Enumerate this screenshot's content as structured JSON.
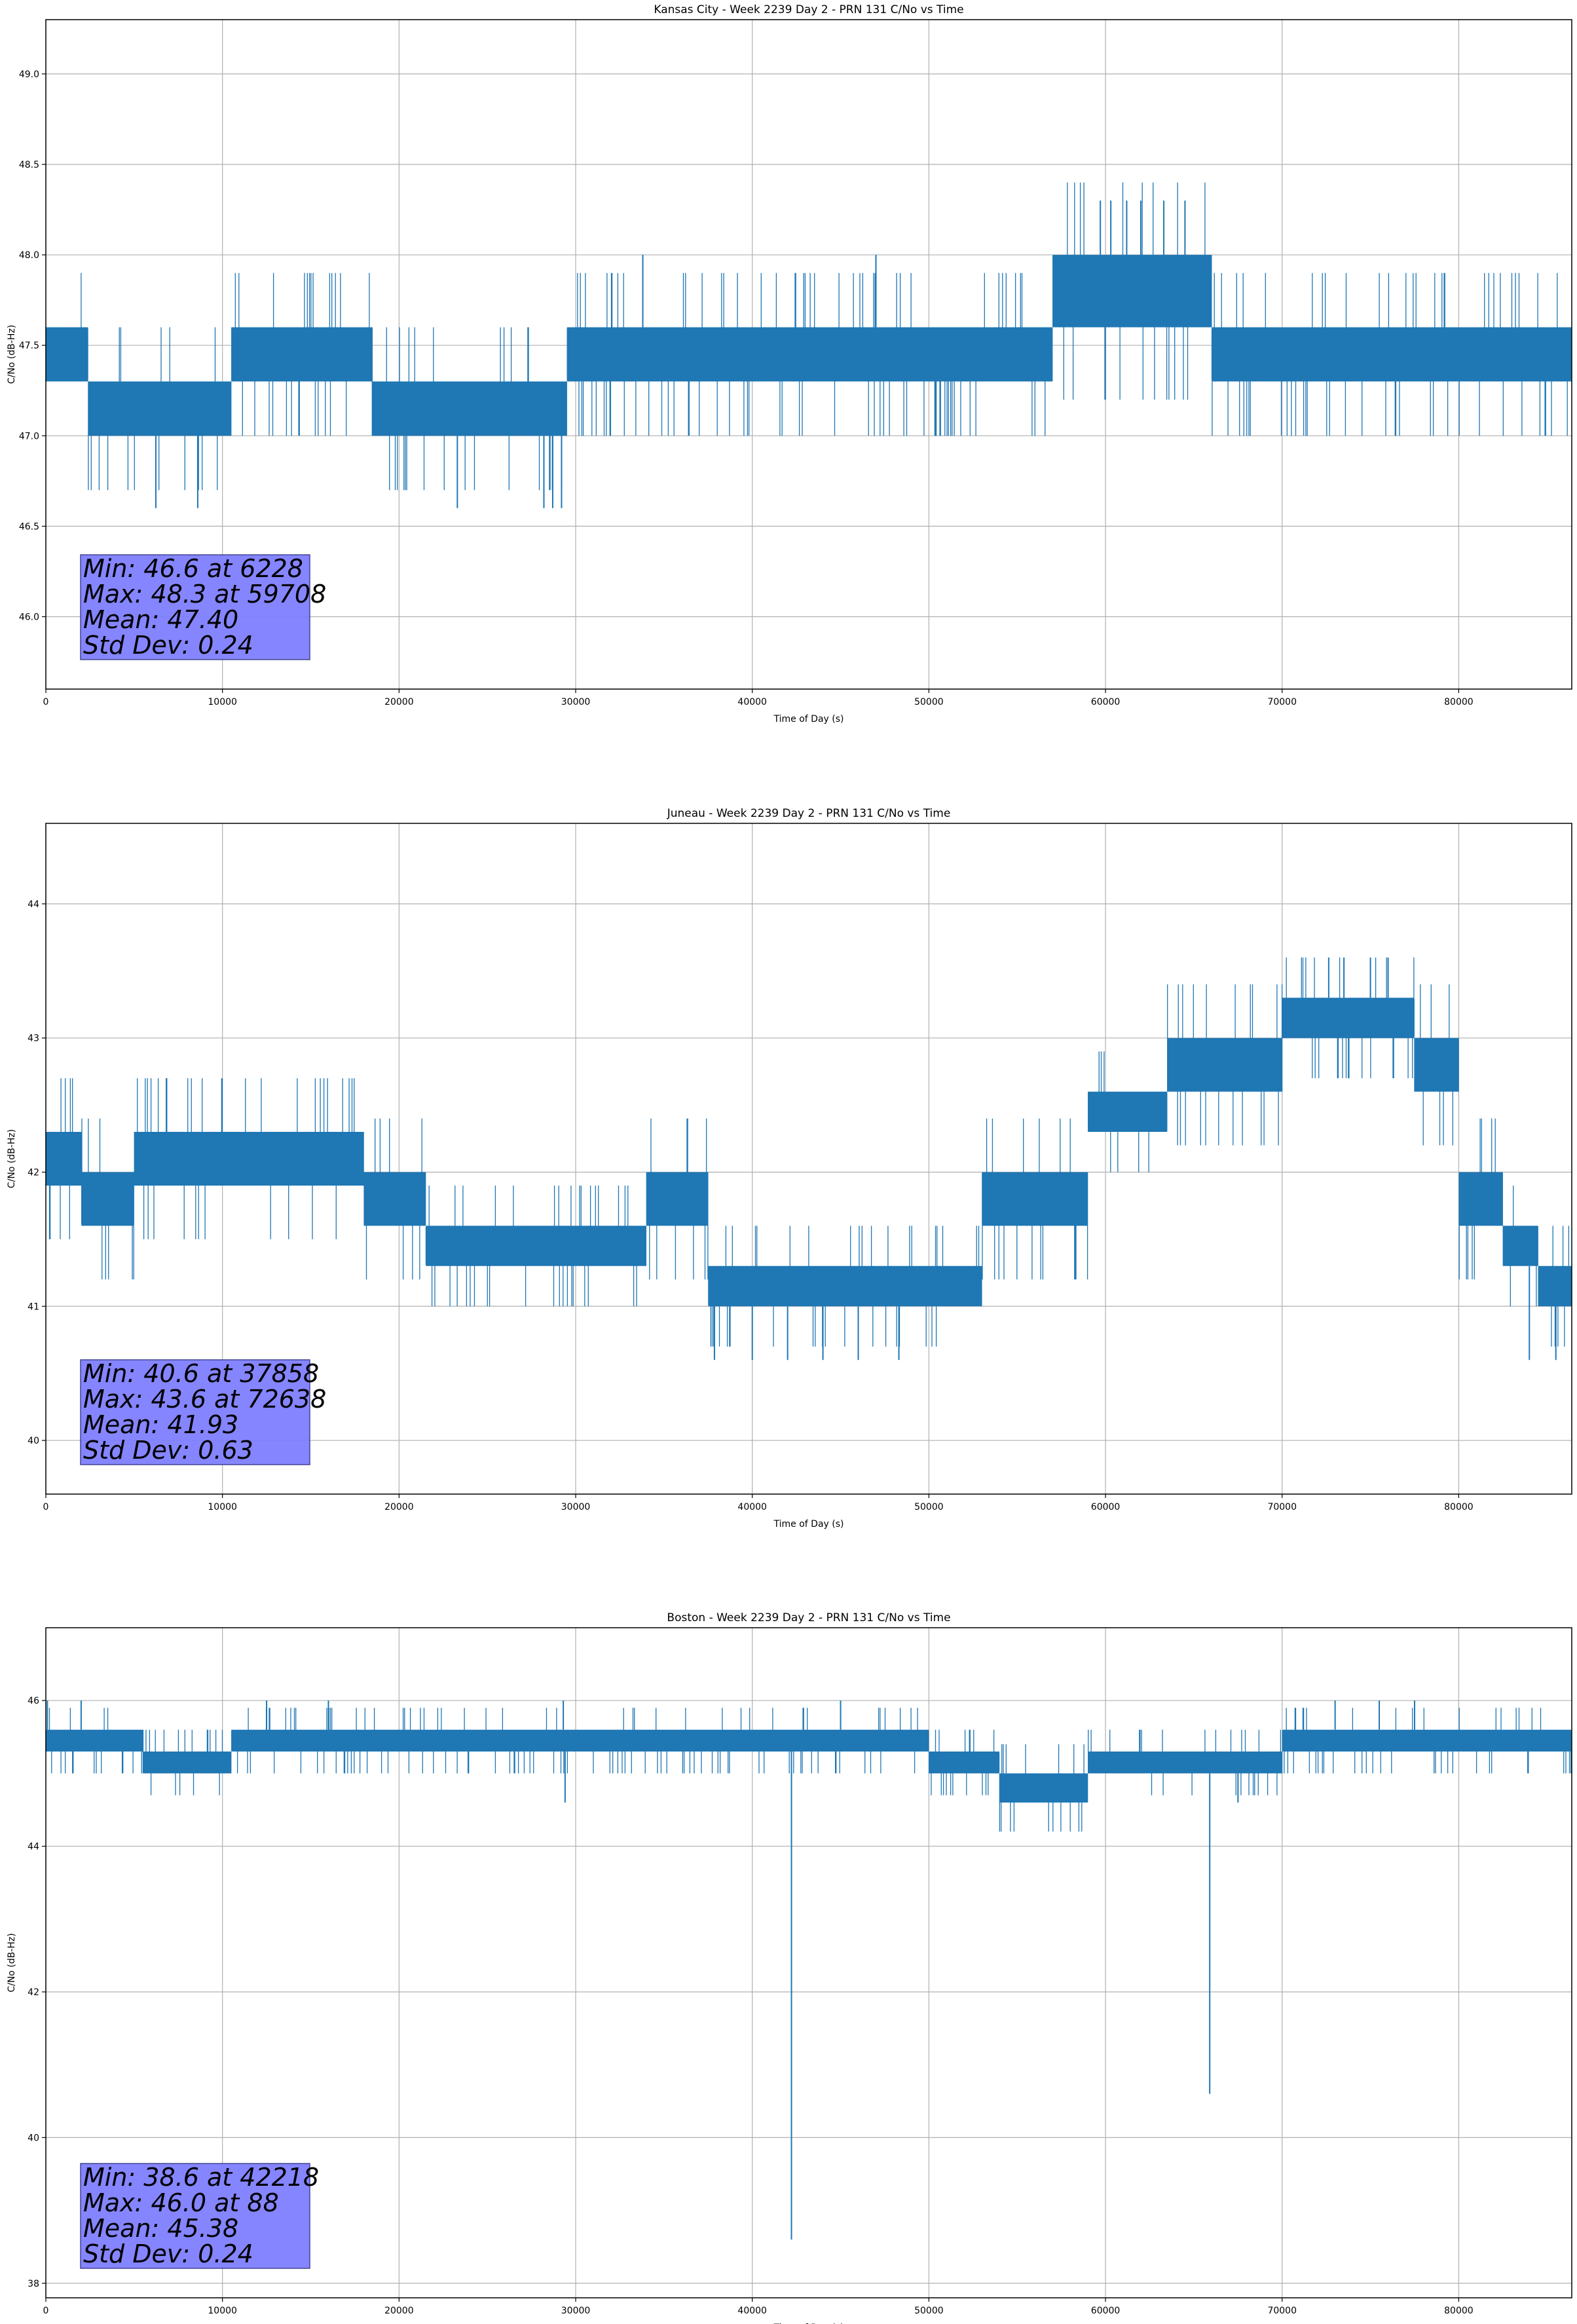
{
  "chart_data": [
    {
      "type": "line",
      "title": "Kansas City - Week 2239 Day 2 - PRN 131 C/No vs Time",
      "xlabel": "Time of Day (s)",
      "ylabel": "C/No (dB-Hz)",
      "xlim": [
        0,
        86400
      ],
      "ylim": [
        45.6,
        49.3
      ],
      "xticks": [
        0,
        10000,
        20000,
        30000,
        40000,
        50000,
        60000,
        70000,
        80000
      ],
      "yticks": [
        46.0,
        46.5,
        47.0,
        47.5,
        48.0,
        48.5,
        49.0
      ],
      "ytick_labels": [
        "46.0",
        "46.5",
        "47.0",
        "47.5",
        "48.0",
        "48.5",
        "49.0"
      ],
      "grid": true,
      "series_color": "#1f77b4",
      "band": [
        [
          0,
          47.3,
          47.6
        ],
        [
          2400,
          47.0,
          47.3
        ],
        [
          10500,
          47.3,
          47.6
        ],
        [
          18500,
          47.0,
          47.3
        ],
        [
          29500,
          47.3,
          47.6
        ],
        [
          47000,
          47.3,
          47.6
        ],
        [
          57000,
          47.6,
          48.0
        ],
        [
          66000,
          47.3,
          47.6
        ],
        [
          86400,
          47.3,
          47.6
        ]
      ],
      "spikes": [
        [
          6228,
          46.6
        ],
        [
          8600,
          46.6
        ],
        [
          23300,
          46.6
        ],
        [
          28200,
          46.6
        ],
        [
          28700,
          46.6
        ],
        [
          29200,
          46.6
        ],
        [
          33800,
          48.0
        ],
        [
          47000,
          48.0
        ],
        [
          59708,
          48.3
        ],
        [
          60300,
          48.3
        ],
        [
          61200,
          48.3
        ],
        [
          62000,
          48.3
        ],
        [
          63300,
          48.3
        ],
        [
          64500,
          48.3
        ]
      ],
      "stats": [
        "Min: 46.6 at 6228",
        "Max: 48.3 at 59708",
        "Mean: 47.40",
        "Std Dev: 0.24"
      ]
    },
    {
      "type": "line",
      "title": "Juneau - Week 2239 Day 2 - PRN 131 C/No vs Time",
      "xlabel": "Time of Day (s)",
      "ylabel": "C/No (dB-Hz)",
      "xlim": [
        0,
        86400
      ],
      "ylim": [
        39.6,
        44.6
      ],
      "xticks": [
        0,
        10000,
        20000,
        30000,
        40000,
        50000,
        60000,
        70000,
        80000
      ],
      "yticks": [
        40,
        41,
        42,
        43,
        44
      ],
      "ytick_labels": [
        "40",
        "41",
        "42",
        "43",
        "44"
      ],
      "grid": true,
      "series_color": "#1f77b4",
      "band": [
        [
          0,
          41.9,
          42.3
        ],
        [
          2000,
          41.6,
          42.0
        ],
        [
          5000,
          41.9,
          42.3
        ],
        [
          18000,
          41.6,
          42.0
        ],
        [
          21500,
          41.3,
          41.6
        ],
        [
          34000,
          41.6,
          42.0
        ],
        [
          37500,
          41.0,
          41.3
        ],
        [
          53000,
          41.6,
          42.0
        ],
        [
          59000,
          42.3,
          42.6
        ],
        [
          63500,
          42.6,
          43.0
        ],
        [
          70000,
          43.0,
          43.3
        ],
        [
          77500,
          42.6,
          43.0
        ],
        [
          80000,
          41.6,
          42.0
        ],
        [
          82500,
          41.3,
          41.6
        ],
        [
          84500,
          41.0,
          41.3
        ],
        [
          86400,
          41.0,
          41.3
        ]
      ],
      "spikes": [
        [
          37858,
          40.6
        ],
        [
          40000,
          40.6
        ],
        [
          42000,
          40.6
        ],
        [
          44000,
          40.6
        ],
        [
          46000,
          40.6
        ],
        [
          48300,
          40.6
        ],
        [
          84000,
          40.6
        ],
        [
          85500,
          40.6
        ],
        [
          72638,
          43.6
        ],
        [
          73500,
          43.6
        ],
        [
          75000,
          43.6
        ],
        [
          76000,
          43.6
        ]
      ],
      "stats": [
        "Min: 40.6 at 37858",
        "Max: 43.6 at 72638",
        "Mean: 41.93",
        "Std Dev: 0.63"
      ]
    },
    {
      "type": "line",
      "title": "Boston - Week 2239 Day 2 - PRN 131 C/No vs Time",
      "xlabel": "Time of Day (s)",
      "ylabel": "C/No (dB-Hz)",
      "xlim": [
        0,
        86400
      ],
      "ylim": [
        37.8,
        47.0
      ],
      "xticks": [
        0,
        10000,
        20000,
        30000,
        40000,
        50000,
        60000,
        70000,
        80000
      ],
      "yticks": [
        38,
        40,
        42,
        44,
        46
      ],
      "ytick_labels": [
        "38",
        "40",
        "42",
        "44",
        "46"
      ],
      "grid": true,
      "series_color": "#1f77b4",
      "band": [
        [
          0,
          45.3,
          45.6
        ],
        [
          5500,
          45.0,
          45.3
        ],
        [
          10500,
          45.3,
          45.6
        ],
        [
          50000,
          45.0,
          45.3
        ],
        [
          54000,
          44.6,
          45.0
        ],
        [
          59000,
          45.0,
          45.3
        ],
        [
          70000,
          45.3,
          45.6
        ],
        [
          86400,
          45.3,
          45.6
        ]
      ],
      "spikes": [
        [
          42218,
          38.6
        ],
        [
          65900,
          40.6
        ],
        [
          29400,
          44.6
        ],
        [
          56000,
          44.6
        ],
        [
          67500,
          44.6
        ],
        [
          88,
          46.0
        ],
        [
          2000,
          46.0
        ],
        [
          12500,
          46.0
        ],
        [
          16000,
          46.0
        ],
        [
          29300,
          46.0
        ],
        [
          45000,
          46.0
        ],
        [
          73000,
          46.0
        ],
        [
          75500,
          46.0
        ],
        [
          77500,
          46.0
        ]
      ],
      "stats": [
        "Min: 38.6 at 42218",
        "Max: 46.0 at 88",
        "Mean: 45.38",
        "Std Dev: 0.24"
      ]
    }
  ]
}
